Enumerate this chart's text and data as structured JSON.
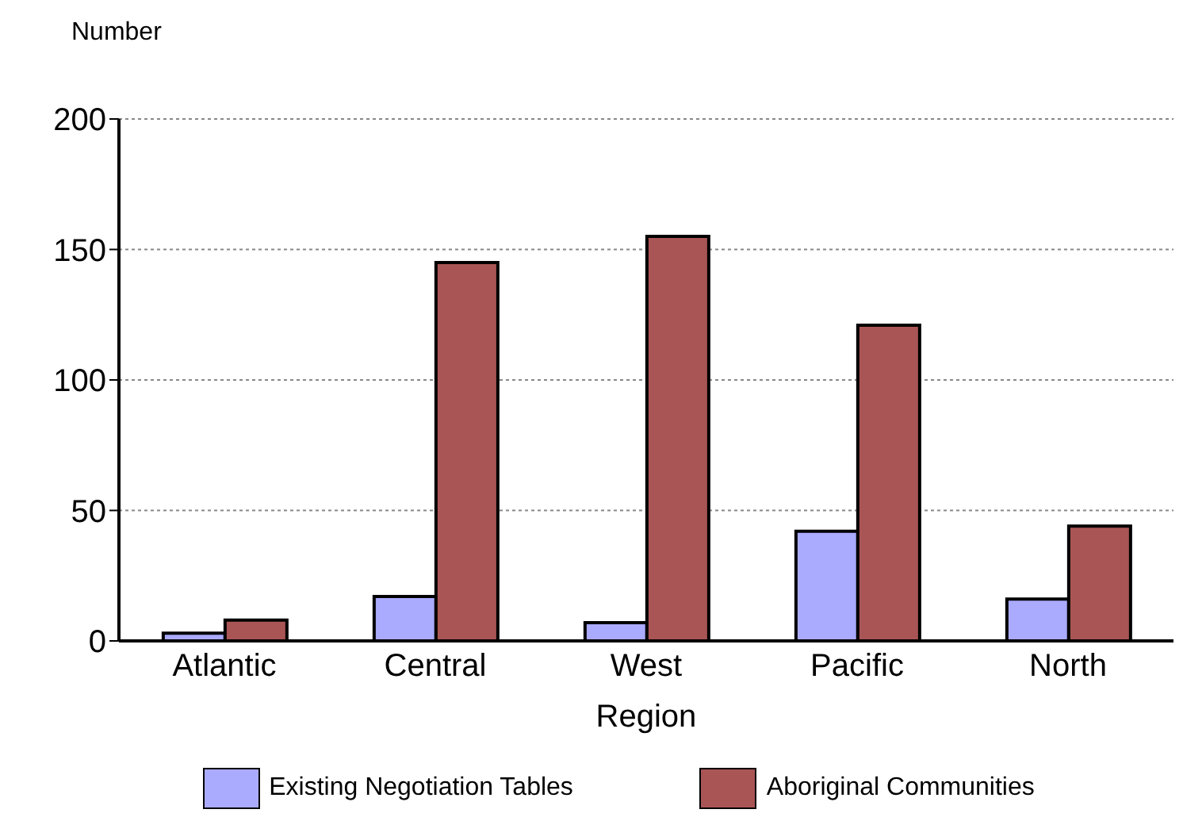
{
  "chart_data": {
    "type": "bar",
    "ylabel": "Number",
    "xlabel": "Region",
    "categories": [
      "Atlantic",
      "Central",
      "West",
      "Pacific",
      "North"
    ],
    "series": [
      {
        "name": "Existing Negotiation Tables",
        "color": "#aaaaff",
        "values": [
          3,
          17,
          7,
          42,
          16
        ]
      },
      {
        "name": "Aboriginal Communities",
        "color": "#aa5555",
        "values": [
          8,
          145,
          155,
          121,
          44
        ]
      }
    ],
    "ylim": [
      0,
      200
    ],
    "yticks": [
      0,
      50,
      100,
      150,
      200
    ],
    "grid": "y",
    "legend": "bottom"
  }
}
